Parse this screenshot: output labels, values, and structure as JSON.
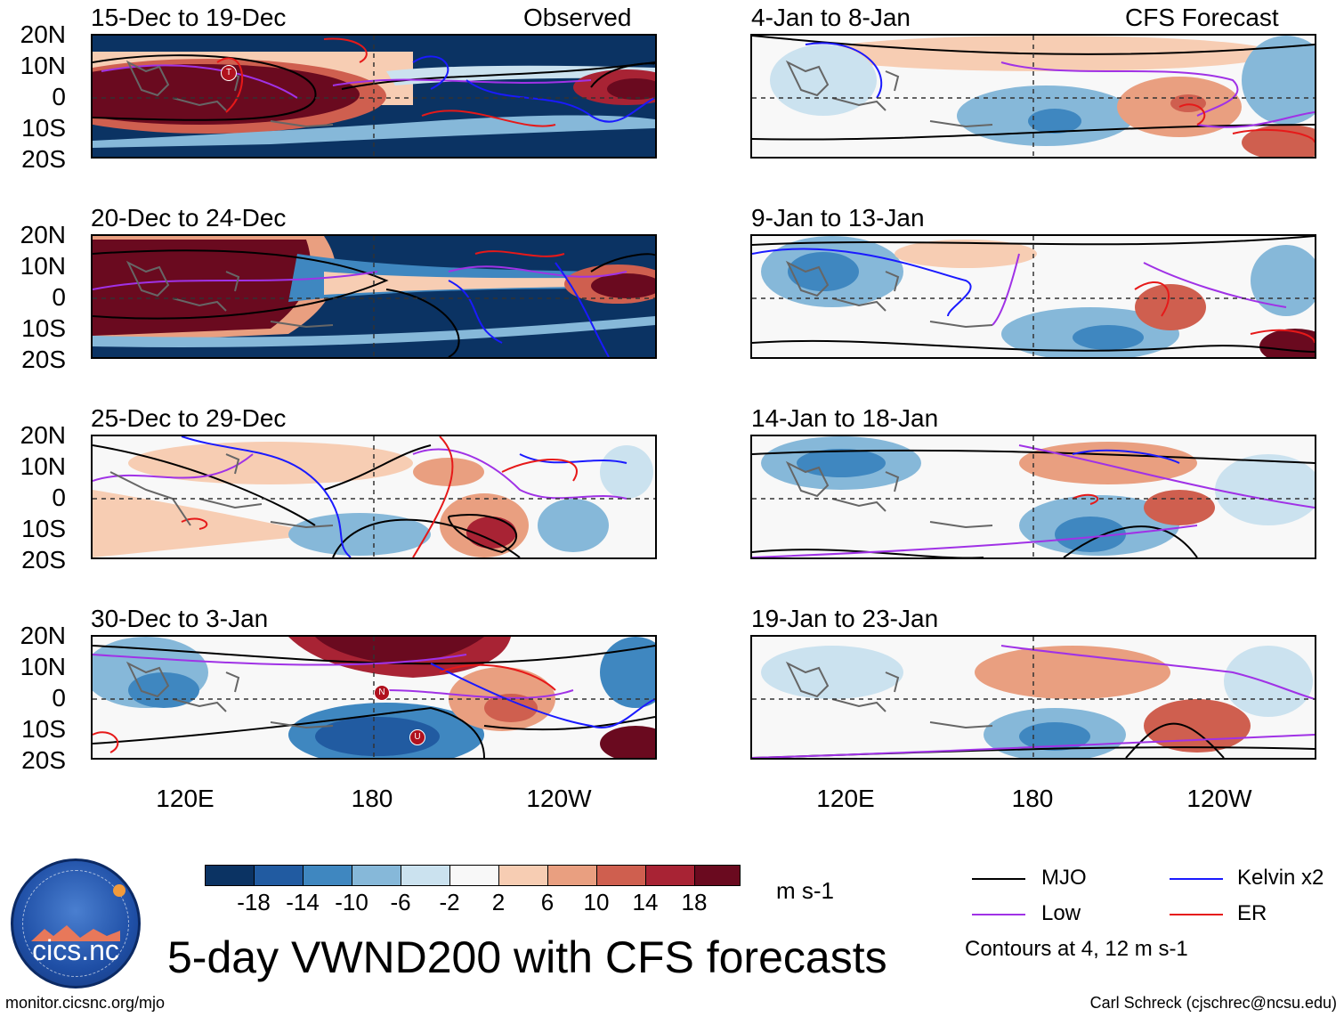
{
  "panels": {
    "p0": {
      "title": "15-Dec to 19-Dec",
      "tag": "Observed"
    },
    "p1": {
      "title": "20-Dec to 24-Dec"
    },
    "p2": {
      "title": "25-Dec to 29-Dec"
    },
    "p3": {
      "title": "30-Dec to 3-Jan"
    },
    "p4": {
      "title": "4-Jan to 8-Jan",
      "tag": "CFS Forecast"
    },
    "p5": {
      "title": "9-Jan to 13-Jan"
    },
    "p6": {
      "title": "14-Jan to 18-Jan"
    },
    "p7": {
      "title": "19-Jan to 23-Jan"
    }
  },
  "axes": {
    "lat_labels": [
      "20N",
      "10N",
      "0",
      "10S",
      "20S"
    ],
    "lon_labels": [
      "120E",
      "180",
      "120W"
    ]
  },
  "colorbar": {
    "ticks": [
      "-18",
      "-14",
      "-10",
      "-6",
      "-2",
      "2",
      "6",
      "10",
      "14",
      "18"
    ],
    "units": "m s-1",
    "colors": [
      "#0b3363",
      "#215ba1",
      "#3f87c0",
      "#86b8d9",
      "#cbe2ef",
      "#f8f8f8",
      "#f7cdb3",
      "#e99f80",
      "#cf5f4f",
      "#a82334",
      "#6a0a1f"
    ]
  },
  "legend": {
    "mjo": "MJO",
    "kelvin": "Kelvin x2",
    "low": "Low",
    "er": "ER",
    "contours": "Contours at 4, 12 m s-1",
    "colors": {
      "mjo": "#000000",
      "kelvin": "#1a1aff",
      "low": "#a032e6",
      "er": "#e61919"
    }
  },
  "main_title": "5-day VWND200 with CFS forecasts",
  "footer": {
    "left": "monitor.cicsnc.org/mjo",
    "right": "Carl Schreck (cjschrec@ncsu.edu)"
  },
  "logo": {
    "name": "cics.nc",
    "ring_text": "Cooperative Institute for Climate and Satellites"
  },
  "storm_markers": {
    "p0": [
      "T"
    ],
    "p3": [
      "N",
      "U"
    ]
  }
}
